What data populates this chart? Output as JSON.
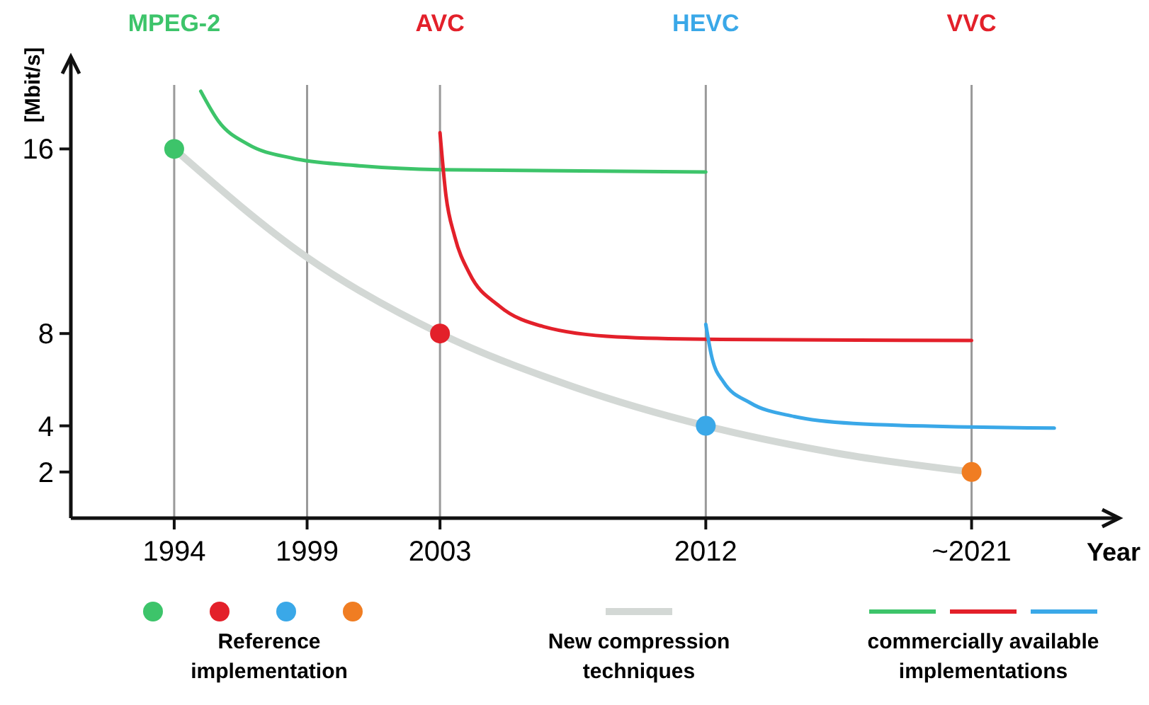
{
  "chart_data": {
    "type": "line",
    "xlabel": "Year",
    "ylabel": "[Mbit/s]",
    "xlim": [
      1990.5,
      2026
    ],
    "ylim": [
      0,
      20
    ],
    "xticks": [
      1994,
      {
        "value": 1998.5,
        "label": "1999"
      },
      2003,
      2012,
      {
        "value": 2021,
        "label": "~2021"
      }
    ],
    "yticks": [
      2,
      4,
      8,
      16
    ],
    "grid": "x",
    "legend": "bottom",
    "line_style": "solid",
    "annotations": [
      "MPEG-2",
      "AVC",
      "HEVC",
      "VVC"
    ],
    "series": [
      {
        "name": "New compression techniques",
        "color": "#d3d8d5",
        "x": [
          1994,
          1998.5,
          2003,
          2007.5,
          2012,
          2016.5,
          2021
        ],
        "values": [
          16,
          11.3,
          8,
          5.7,
          4,
          2.8,
          2
        ]
      },
      {
        "name": "commercially available implementations",
        "color": "#3dc46a",
        "x": [
          1994.9,
          1995.5,
          1996.5,
          1998,
          2000,
          2003,
          2012
        ],
        "values": [
          18.5,
          17.2,
          16.2,
          15.6,
          15.3,
          15.1,
          15.0
        ]
      },
      {
        "color": "#e3202a",
        "x": [
          2003,
          2003.2,
          2003.5,
          2004,
          2005,
          2006.5,
          2009,
          2012,
          2021
        ],
        "values": [
          16.7,
          14,
          12.2,
          10.6,
          9.2,
          8.3,
          7.85,
          7.75,
          7.7
        ]
      },
      {
        "color": "#3aa8e8",
        "x": [
          2012,
          2012.2,
          2012.6,
          2013.5,
          2015,
          2017,
          2021,
          2023.8
        ],
        "values": [
          8.4,
          7,
          5.9,
          5,
          4.4,
          4.1,
          3.95,
          3.9
        ]
      },
      {
        "name": "Reference implementation",
        "type": "scatter",
        "marker": "circle",
        "x": [
          1994,
          2003,
          2012,
          2021
        ],
        "values": [
          16,
          8,
          4,
          2
        ],
        "colors": [
          "#3dc46a",
          "#e3202a",
          "#3aa8e8",
          "#f07d22"
        ]
      }
    ]
  }
}
